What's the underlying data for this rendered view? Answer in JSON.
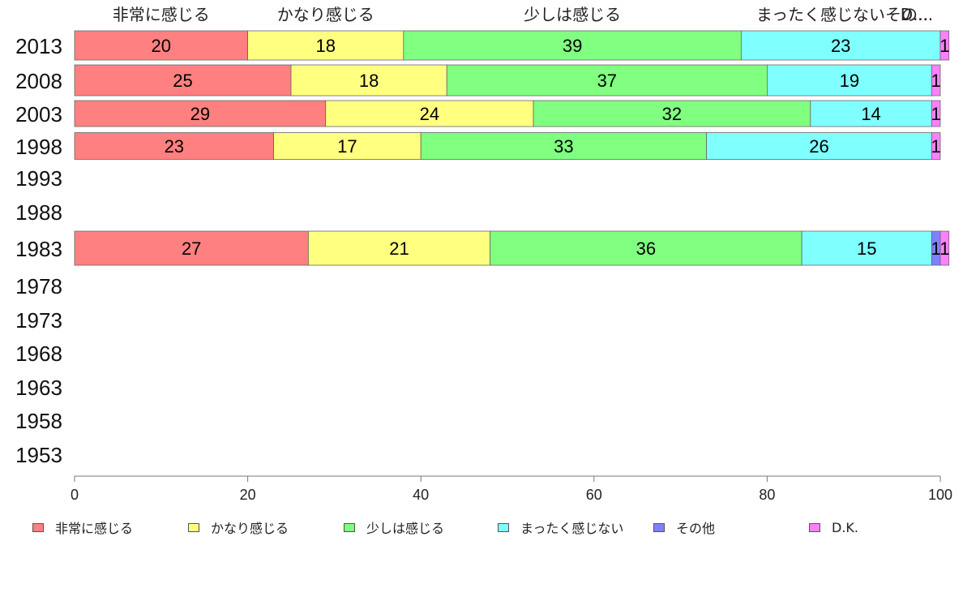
{
  "chart_data": {
    "type": "bar",
    "orientation": "horizontal",
    "stacked": true,
    "categories": [
      "2013",
      "2008",
      "2003",
      "1998",
      "1993",
      "1988",
      "1983",
      "1978",
      "1973",
      "1968",
      "1963",
      "1958",
      "1953"
    ],
    "series": [
      {
        "name": "非常に感じる",
        "color": "#ff8080",
        "values": [
          20,
          25,
          29,
          23,
          null,
          null,
          27,
          null,
          null,
          null,
          null,
          null,
          null
        ]
      },
      {
        "name": "かなり感じる",
        "color": "#ffff80",
        "values": [
          18,
          18,
          24,
          17,
          null,
          null,
          21,
          null,
          null,
          null,
          null,
          null,
          null
        ]
      },
      {
        "name": "少しは感じる",
        "color": "#80ff80",
        "values": [
          39,
          37,
          32,
          33,
          null,
          null,
          36,
          null,
          null,
          null,
          null,
          null,
          null
        ]
      },
      {
        "name": "まったく感じない",
        "color": "#80ffff",
        "values": [
          23,
          19,
          14,
          26,
          null,
          null,
          15,
          null,
          null,
          null,
          null,
          null,
          null
        ]
      },
      {
        "name": "その他",
        "color": "#8080ff",
        "values": [
          0,
          0,
          0,
          0,
          null,
          null,
          1,
          null,
          null,
          null,
          null,
          null,
          null
        ]
      },
      {
        "name": "D.K.",
        "color": "#ff80ff",
        "values": [
          1,
          1,
          1,
          1,
          null,
          null,
          1,
          null,
          null,
          null,
          null,
          null,
          null
        ]
      }
    ],
    "top_labels": [
      "非常に感じる",
      "かなり感じる",
      "少しは感じる",
      "まったく感じないその...",
      "D..."
    ],
    "xlim": [
      0,
      100
    ],
    "xticks": [
      "0",
      "20",
      "40",
      "60",
      "80",
      "100"
    ],
    "grid": false,
    "legend_position": "bottom"
  }
}
